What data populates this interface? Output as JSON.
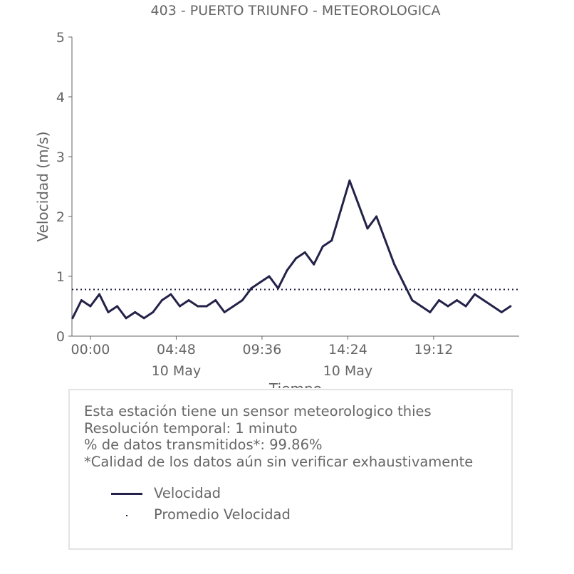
{
  "chart_data": {
    "type": "line",
    "title": "403 - PUERTO TRIUNFO - METEOROLOGICA",
    "xlabel": "Tiempo",
    "ylabel": "Velocidad (m/s)",
    "ylim": [
      0,
      5
    ],
    "yticks": [
      "0",
      "1",
      "2",
      "3",
      "4",
      "5"
    ],
    "xlim": [
      "2024-05-09 22:58",
      "2024-05-10 23:59"
    ],
    "xticks": [
      {
        "x": "2024-05-10 00:00",
        "time": "00:00",
        "date": ""
      },
      {
        "x": "2024-05-10 04:48",
        "time": "04:48",
        "date": "10 May"
      },
      {
        "x": "2024-05-10 09:36",
        "time": "09:36",
        "date": ""
      },
      {
        "x": "2024-05-10 14:24",
        "time": "14:24",
        "date": "10 May"
      },
      {
        "x": "2024-05-10 19:12",
        "time": "19:12",
        "date": ""
      }
    ],
    "series": [
      {
        "name": "Velocidad",
        "color": "#232249",
        "style": "solid",
        "x": [
          "2024-05-09 23:00",
          "2024-05-09 23:30",
          "2024-05-10 00:00",
          "2024-05-10 00:30",
          "2024-05-10 01:00",
          "2024-05-10 01:30",
          "2024-05-10 02:00",
          "2024-05-10 02:30",
          "2024-05-10 03:00",
          "2024-05-10 03:30",
          "2024-05-10 04:00",
          "2024-05-10 04:30",
          "2024-05-10 05:00",
          "2024-05-10 05:30",
          "2024-05-10 06:00",
          "2024-05-10 06:30",
          "2024-05-10 07:00",
          "2024-05-10 07:30",
          "2024-05-10 08:00",
          "2024-05-10 08:30",
          "2024-05-10 09:00",
          "2024-05-10 09:30",
          "2024-05-10 10:00",
          "2024-05-10 10:30",
          "2024-05-10 11:00",
          "2024-05-10 11:30",
          "2024-05-10 12:00",
          "2024-05-10 12:30",
          "2024-05-10 13:00",
          "2024-05-10 13:30",
          "2024-05-10 14:00",
          "2024-05-10 14:30",
          "2024-05-10 15:00",
          "2024-05-10 15:30",
          "2024-05-10 16:00",
          "2024-05-10 16:30",
          "2024-05-10 17:00",
          "2024-05-10 17:30",
          "2024-05-10 18:00",
          "2024-05-10 18:30",
          "2024-05-10 19:00",
          "2024-05-10 19:30",
          "2024-05-10 20:00",
          "2024-05-10 20:30",
          "2024-05-10 21:00",
          "2024-05-10 21:30",
          "2024-05-10 22:00",
          "2024-05-10 22:30",
          "2024-05-10 23:00",
          "2024-05-10 23:30"
        ],
        "values": [
          0.3,
          0.6,
          0.5,
          0.7,
          0.4,
          0.5,
          0.3,
          0.4,
          0.3,
          0.4,
          0.6,
          0.7,
          0.5,
          0.6,
          0.5,
          0.5,
          0.6,
          0.4,
          0.5,
          0.6,
          0.8,
          0.9,
          1.0,
          0.8,
          1.1,
          1.3,
          1.4,
          1.2,
          1.5,
          1.6,
          2.1,
          2.6,
          2.2,
          1.8,
          2.0,
          1.6,
          1.2,
          0.9,
          0.6,
          0.5,
          0.4,
          0.6,
          0.5,
          0.6,
          0.5,
          0.7,
          0.6,
          0.5,
          0.4,
          0.5
        ]
      },
      {
        "name": "Promedio Velocidad",
        "color": "#232249",
        "style": "dotted",
        "value": 0.78
      }
    ],
    "legend": "bottom, inside info box"
  },
  "info": {
    "lines": [
      "Esta estación tiene un sensor meteorologico thies",
      "Resolución temporal: 1 minuto",
      "% de datos transmitidos*: 99.86%",
      "*Calidad de los datos aún sin verificar exhaustivamente"
    ]
  },
  "legend": {
    "items": [
      {
        "label": "Velocidad"
      },
      {
        "label": "Promedio Velocidad"
      }
    ]
  }
}
